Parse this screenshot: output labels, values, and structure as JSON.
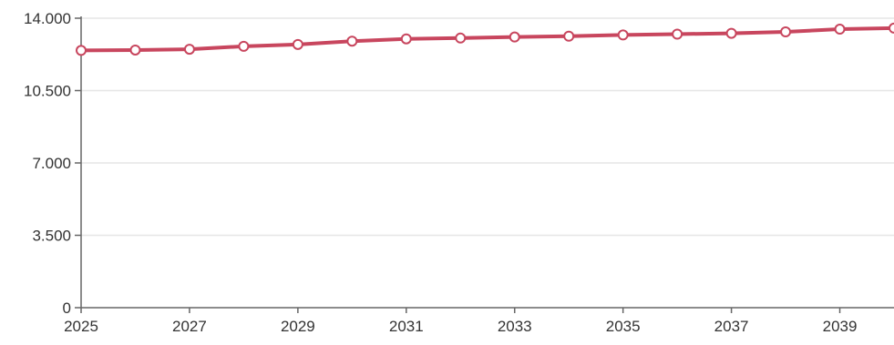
{
  "colors": {
    "series": "#c8465e",
    "axis": "#666666",
    "grid": "#e6e6e6",
    "marker_fill": "#ffffff",
    "text": "#333333"
  },
  "chart_data": {
    "type": "line",
    "title": "",
    "xlabel": "",
    "ylabel": "",
    "grid": true,
    "legend": "none",
    "xlim": [
      2025,
      2040
    ],
    "ylim": [
      0,
      14000
    ],
    "x_ticks": [
      2025,
      2027,
      2029,
      2031,
      2033,
      2035,
      2037,
      2039
    ],
    "x_tick_labels": [
      "2025",
      "2027",
      "2029",
      "2031",
      "2033",
      "2035",
      "2037",
      "2039"
    ],
    "y_ticks": [
      0,
      3500,
      7000,
      10500,
      14000
    ],
    "y_tick_labels": [
      "0",
      "3.500",
      "7.000",
      "10.500",
      "14.000"
    ],
    "x": [
      2025,
      2026,
      2027,
      2028,
      2029,
      2030,
      2031,
      2032,
      2033,
      2034,
      2035,
      2036,
      2037,
      2038,
      2039,
      2040
    ],
    "series": [
      {
        "values": [
          12440,
          12460,
          12500,
          12640,
          12730,
          12890,
          13000,
          13040,
          13090,
          13130,
          13190,
          13230,
          13270,
          13340,
          13470,
          13520
        ]
      }
    ]
  }
}
